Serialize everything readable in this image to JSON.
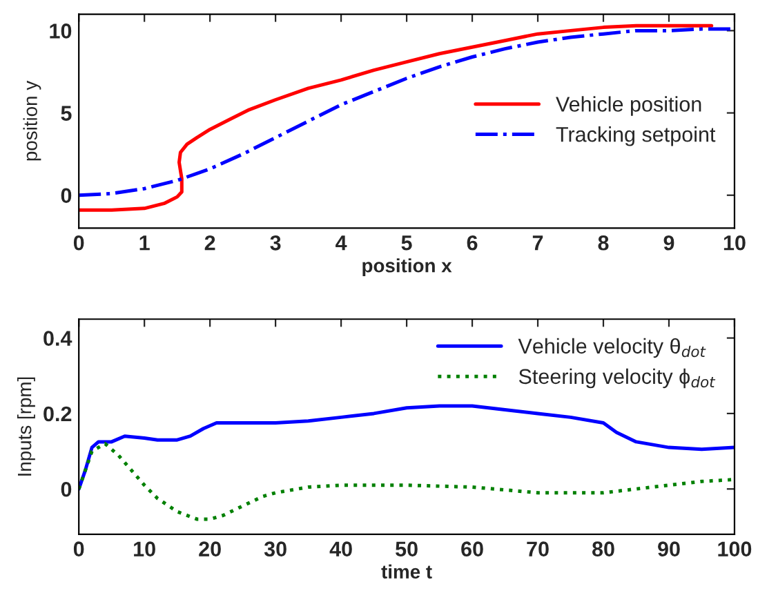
{
  "chart_data": [
    {
      "type": "line",
      "xlabel": "position x",
      "ylabel": "position y",
      "xlim": [
        0,
        10
      ],
      "ylim": [
        -2,
        11
      ],
      "xticks": [
        0,
        1,
        2,
        3,
        4,
        5,
        6,
        7,
        8,
        9,
        10
      ],
      "yticks": [
        0,
        5,
        10
      ],
      "legend": "right",
      "grid": false,
      "series": [
        {
          "name": "Vehicle position",
          "color": "#ff0000",
          "line_style": "solid",
          "x": [
            0,
            0.5,
            1.0,
            1.3,
            1.5,
            1.57,
            1.57,
            1.53,
            1.55,
            1.65,
            1.8,
            2.0,
            2.3,
            2.6,
            3.0,
            3.5,
            4.0,
            4.5,
            5.0,
            5.5,
            6.0,
            6.5,
            7.0,
            7.5,
            8.0,
            8.5,
            9.0,
            9.65
          ],
          "values": [
            -0.9,
            -0.9,
            -0.8,
            -0.5,
            -0.1,
            0.2,
            1.0,
            2.0,
            2.6,
            3.1,
            3.5,
            4.0,
            4.6,
            5.2,
            5.8,
            6.5,
            7.0,
            7.6,
            8.1,
            8.6,
            9.0,
            9.4,
            9.8,
            10.0,
            10.2,
            10.3,
            10.3,
            10.3
          ]
        },
        {
          "name": "Tracking setpoint",
          "color": "#0000ff",
          "line_style": "dashdot",
          "x": [
            0,
            0.5,
            1.0,
            1.5,
            2.0,
            2.5,
            3.0,
            3.5,
            4.0,
            4.5,
            5.0,
            5.5,
            6.0,
            6.5,
            7.0,
            7.5,
            8.0,
            8.5,
            9.0,
            9.5,
            10
          ],
          "values": [
            0,
            0.1,
            0.4,
            0.9,
            1.6,
            2.5,
            3.5,
            4.5,
            5.5,
            6.3,
            7.1,
            7.8,
            8.4,
            8.9,
            9.3,
            9.6,
            9.8,
            10.0,
            10.0,
            10.1,
            10.1
          ]
        }
      ]
    },
    {
      "type": "line",
      "xlabel": "time t",
      "ylabel": "Inputs [rpm]",
      "xlim": [
        0,
        100
      ],
      "ylim": [
        -0.12,
        0.45
      ],
      "xticks": [
        0,
        10,
        20,
        30,
        40,
        50,
        60,
        70,
        80,
        90,
        100
      ],
      "yticks": [
        0,
        0.2,
        0.4
      ],
      "legend": "top right",
      "grid": false,
      "series": [
        {
          "name": "Vehicle velocity θ$_{dot}$",
          "color": "#0000ff",
          "line_style": "solid",
          "x": [
            0,
            1,
            2,
            3,
            5,
            7,
            10,
            12,
            15,
            17,
            19,
            21,
            25,
            30,
            35,
            40,
            45,
            50,
            55,
            60,
            65,
            70,
            75,
            80,
            82,
            85,
            90,
            95,
            100
          ],
          "values": [
            0,
            0.05,
            0.11,
            0.125,
            0.125,
            0.14,
            0.135,
            0.13,
            0.13,
            0.14,
            0.16,
            0.175,
            0.175,
            0.175,
            0.18,
            0.19,
            0.2,
            0.215,
            0.22,
            0.22,
            0.21,
            0.2,
            0.19,
            0.175,
            0.15,
            0.125,
            0.11,
            0.105,
            0.11
          ]
        },
        {
          "name": "Steering velocity ϕ$_{dot}$",
          "color": "#008000",
          "line_style": "dotted",
          "x": [
            0,
            2,
            4,
            6,
            8,
            10,
            12,
            15,
            18,
            20,
            22,
            25,
            28,
            30,
            35,
            40,
            50,
            60,
            70,
            80,
            85,
            90,
            95,
            100
          ],
          "values": [
            0,
            0.1,
            0.12,
            0.09,
            0.05,
            0.01,
            -0.025,
            -0.06,
            -0.08,
            -0.08,
            -0.07,
            -0.045,
            -0.02,
            -0.01,
            0.005,
            0.01,
            0.01,
            0.005,
            -0.01,
            -0.01,
            0,
            0.01,
            0.02,
            0.025
          ]
        }
      ]
    }
  ]
}
